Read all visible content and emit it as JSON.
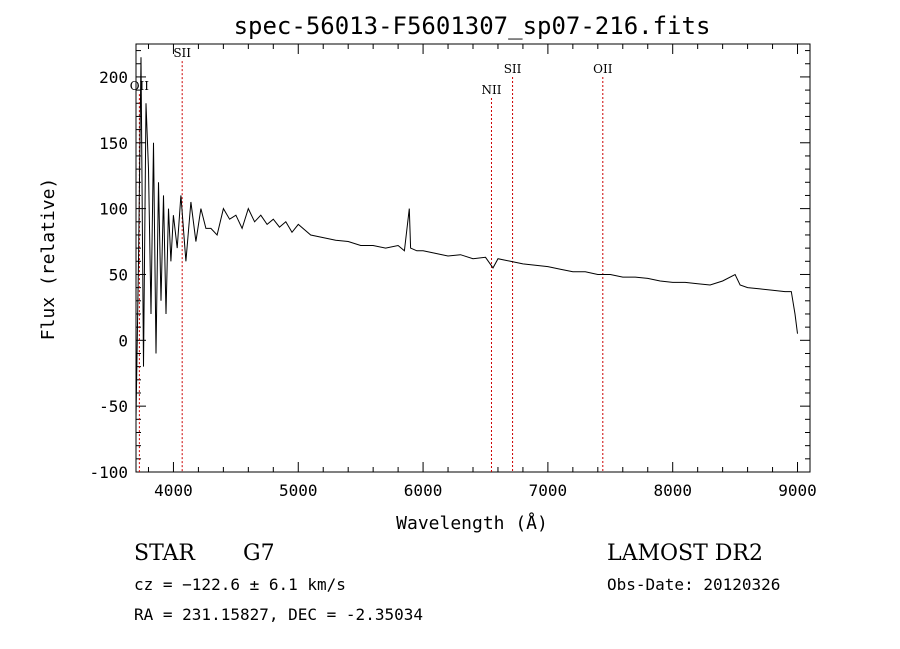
{
  "chart_data": {
    "type": "line",
    "title": "spec-56013-F5601307_sp07-216.fits",
    "xlabel": "Wavelength (Å)",
    "ylabel": "Flux (relative)",
    "xlim": [
      3700,
      9100
    ],
    "ylim": [
      -100,
      225
    ],
    "xticks": [
      4000,
      5000,
      6000,
      7000,
      8000,
      9000
    ],
    "yticks": [
      -100,
      -50,
      0,
      50,
      100,
      150,
      200
    ],
    "grid": false,
    "colors": {
      "spectrum": "#000000",
      "lines": "#cc0000"
    },
    "series": [
      {
        "x": [
          3700,
          3720,
          3740,
          3760,
          3780,
          3800,
          3820,
          3840,
          3860,
          3880,
          3900,
          3920,
          3940,
          3960,
          3980,
          4000,
          4030,
          4060,
          4100,
          4140,
          4180,
          4220,
          4260,
          4300,
          4350,
          4400,
          4450,
          4500,
          4550,
          4600,
          4650,
          4700,
          4750,
          4800,
          4850,
          4900,
          4950,
          5000,
          5100,
          5200,
          5300,
          5400,
          5500,
          5600,
          5700,
          5800,
          5850,
          5890,
          5900,
          5950,
          6000,
          6100,
          6200,
          6300,
          6400,
          6500,
          6560,
          6600,
          6700,
          6800,
          6900,
          7000,
          7100,
          7200,
          7300,
          7400,
          7500,
          7600,
          7700,
          7800,
          7900,
          8000,
          8100,
          8200,
          8300,
          8400,
          8500,
          8540,
          8600,
          8700,
          8800,
          8900,
          8950,
          8980,
          9000
        ],
        "values": [
          -60,
          60,
          215,
          -20,
          180,
          130,
          20,
          150,
          -10,
          120,
          30,
          110,
          20,
          100,
          60,
          95,
          70,
          110,
          60,
          105,
          75,
          100,
          85,
          85,
          80,
          100,
          92,
          95,
          85,
          100,
          90,
          95,
          88,
          92,
          86,
          90,
          82,
          88,
          80,
          78,
          76,
          75,
          72,
          72,
          70,
          72,
          68,
          100,
          70,
          68,
          68,
          66,
          64,
          65,
          62,
          63,
          55,
          62,
          60,
          58,
          57,
          56,
          54,
          52,
          52,
          50,
          50,
          48,
          48,
          47,
          45,
          44,
          44,
          43,
          42,
          45,
          50,
          42,
          40,
          39,
          38,
          37,
          37,
          20,
          5
        ]
      }
    ],
    "line_markers": [
      {
        "label": "OII",
        "x": 3727,
        "label_y": 190
      },
      {
        "label": "SII",
        "x": 4070,
        "label_y": 215
      },
      {
        "label": "NII",
        "x": 6548,
        "label_y": 187
      },
      {
        "label": "SII",
        "x": 6717,
        "label_y": 203
      },
      {
        "label": "OII",
        "x": 7440,
        "label_y": 203
      }
    ]
  },
  "info": {
    "object_class": "STAR",
    "subclass": "G7",
    "survey": "LAMOST DR2",
    "cz_line": "cz = −122.6 ± 6.1 km/s",
    "obs_date_line": "Obs-Date: 20120326",
    "radec_line": "RA = 231.15827, DEC =  -2.35034"
  }
}
